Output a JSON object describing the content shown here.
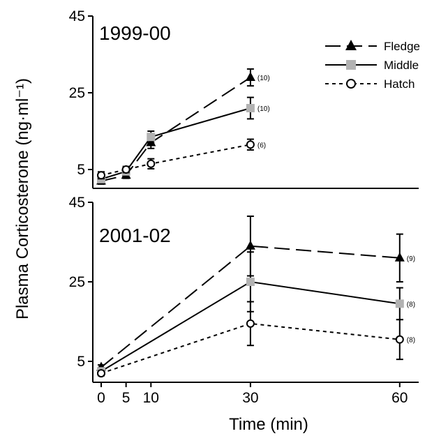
{
  "chart_data": [
    {
      "type": "line",
      "title": "1999-00",
      "xlabel": "",
      "ylabel": "Plasma Corticosterone (ng·ml⁻¹)",
      "ylim": [
        0,
        45
      ],
      "yticks": [
        "45",
        "25",
        "5"
      ],
      "series": [
        {
          "name": "Fledge",
          "color": "#000000",
          "marker": "triangle",
          "line": "dashed",
          "points": [
            {
              "x": 0,
              "y": 2.0,
              "err": 0.8
            },
            {
              "x": 5,
              "y": 3.5,
              "err": 0.8
            },
            {
              "x": 10,
              "y": 12.0,
              "err": 1.5
            },
            {
              "x": 30,
              "y": 29.0,
              "err": 2.2,
              "n": "(10)"
            }
          ]
        },
        {
          "name": "Middle",
          "color": "#b2b2b2",
          "marker": "square",
          "line": "solid",
          "points": [
            {
              "x": 0,
              "y": 2.5,
              "err": 0.8
            },
            {
              "x": 5,
              "y": 4.5,
              "err": 0.8
            },
            {
              "x": 10,
              "y": 13.5,
              "err": 1.5
            },
            {
              "x": 30,
              "y": 21.0,
              "err": 2.8,
              "n": "(10)"
            }
          ]
        },
        {
          "name": "Hatch",
          "color": "#000000",
          "marker": "circle",
          "line": "dotted",
          "points": [
            {
              "x": 0,
              "y": 3.5,
              "err": 0.9
            },
            {
              "x": 5,
              "y": 5.0,
              "err": 0.8
            },
            {
              "x": 10,
              "y": 6.5,
              "err": 1.3
            },
            {
              "x": 30,
              "y": 11.5,
              "err": 1.4,
              "n": "(6)"
            }
          ]
        }
      ]
    },
    {
      "type": "line",
      "title": "2001-02",
      "xlabel": "Time (min)",
      "ylabel": "Plasma Corticosterone (ng·ml⁻¹)",
      "ylim": [
        0,
        45
      ],
      "yticks": [
        "45",
        "25",
        "5"
      ],
      "xticks": [
        "0",
        "5",
        "10",
        "30",
        "60"
      ],
      "series": [
        {
          "name": "Fledge",
          "color": "#000000",
          "marker": "triangle",
          "line": "dashed",
          "points": [
            {
              "x": 0,
              "y": 3.5,
              "err": 0.6
            },
            {
              "x": 30,
              "y": 34.0,
              "err": 7.5
            },
            {
              "x": 60,
              "y": 31.0,
              "err": 6.0,
              "n": "(9)"
            }
          ]
        },
        {
          "name": "Middle",
          "color": "#b2b2b2",
          "marker": "square",
          "line": "solid",
          "points": [
            {
              "x": 0,
              "y": 2.5,
              "err": 0.6
            },
            {
              "x": 30,
              "y": 25.0,
              "err": 7.5
            },
            {
              "x": 60,
              "y": 19.5,
              "err": 4.0,
              "n": "(8)"
            }
          ]
        },
        {
          "name": "Hatch",
          "color": "#000000",
          "marker": "circle",
          "line": "dotted",
          "points": [
            {
              "x": 0,
              "y": 2.0,
              "err": 0.6
            },
            {
              "x": 30,
              "y": 14.5,
              "err": 5.5
            },
            {
              "x": 60,
              "y": 10.5,
              "err": 5.0,
              "n": "(8)"
            }
          ]
        }
      ]
    }
  ],
  "legend": {
    "position": "top-right",
    "items": [
      "Fledge",
      "Middle",
      "Hatch"
    ]
  }
}
